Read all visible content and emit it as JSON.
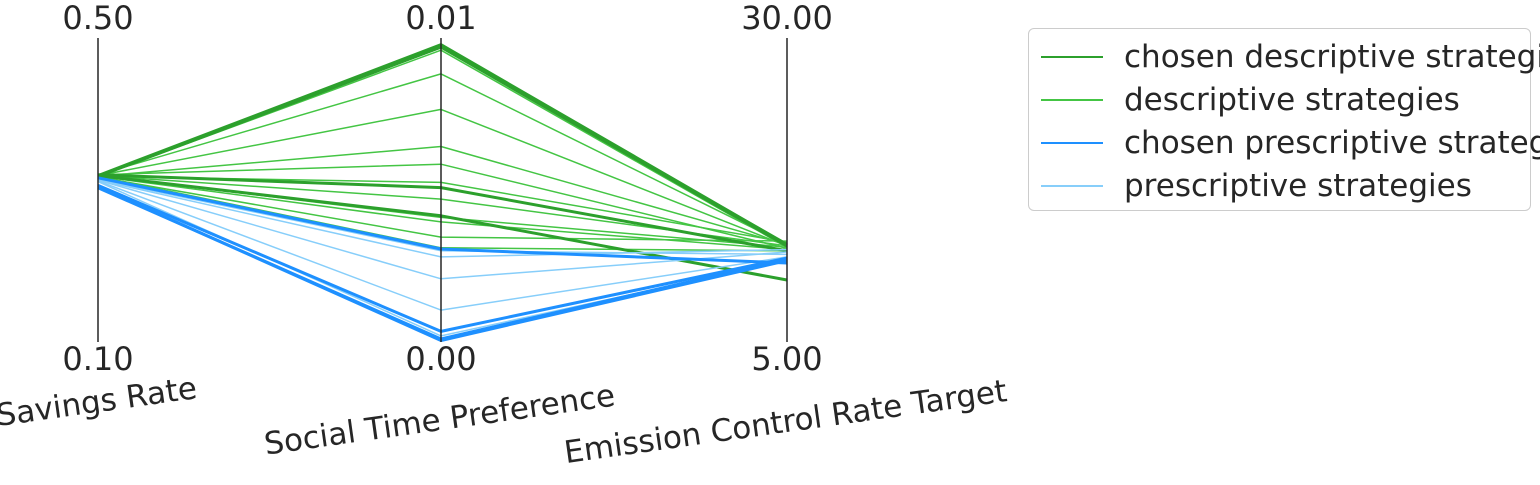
{
  "chart_data": {
    "type": "parallel_coordinates",
    "axes": [
      {
        "label": "Savings Rate",
        "top": "0.50",
        "bottom": "0.10",
        "range": [
          0.1,
          0.5
        ]
      },
      {
        "label": "Social Time Preference",
        "top": "0.01",
        "bottom": "0.00",
        "range": [
          0.0,
          0.01
        ]
      },
      {
        "label": "Emission Control Rate Target",
        "top": "30.00",
        "bottom": "5.00",
        "range": [
          5.0,
          30.0
        ]
      }
    ],
    "legend": {
      "placement": "right",
      "entries": [
        {
          "name": "chosen descriptive strategies",
          "color": "#2ca02c"
        },
        {
          "name": "descriptive strategies",
          "color": "#44c544"
        },
        {
          "name": "chosen prescriptive strategies",
          "color": "#1e90ff"
        },
        {
          "name": "prescriptive strategies",
          "color": "#87cefa"
        }
      ]
    },
    "series": [
      {
        "name": "descriptive strategies",
        "color": "#44c544",
        "width": 1.5,
        "lines": [
          [
            0.319,
            0.00968,
            13.1
          ],
          [
            0.318,
            0.0096,
            12.8
          ],
          [
            0.32,
            0.00882,
            13.0
          ],
          [
            0.319,
            0.00765,
            12.9
          ],
          [
            0.318,
            0.00643,
            13.0
          ],
          [
            0.32,
            0.00585,
            12.7
          ],
          [
            0.318,
            0.00525,
            13.2
          ],
          [
            0.319,
            0.0047,
            12.9
          ],
          [
            0.318,
            0.00395,
            12.6
          ],
          [
            0.317,
            0.00345,
            13.3
          ],
          [
            0.319,
            0.0041,
            12.8
          ],
          [
            0.318,
            0.0031,
            12.5
          ]
        ]
      },
      {
        "name": "chosen descriptive strategies",
        "color": "#2ca02c",
        "width": 3,
        "lines": [
          [
            0.319,
            0.00978,
            13.0
          ],
          [
            0.318,
            0.0097,
            12.9
          ],
          [
            0.32,
            0.00508,
            12.5
          ],
          [
            0.319,
            0.00415,
            10.1
          ]
        ]
      },
      {
        "name": "prescriptive strategies",
        "color": "#87cefa",
        "width": 1.5,
        "lines": [
          [
            0.313,
            0.00208,
            12.4
          ],
          [
            0.312,
            0.00105,
            12.0
          ],
          [
            0.314,
            0.003,
            12.2
          ],
          [
            0.311,
            0.0002,
            11.7
          ],
          [
            0.313,
            0.0028,
            12.6
          ]
        ]
      },
      {
        "name": "chosen prescriptive strategies",
        "color": "#1e90ff",
        "width": 3,
        "lines": [
          [
            0.316,
            0.00306,
            11.5
          ],
          [
            0.303,
            0.0001,
            11.8
          ],
          [
            0.304,
            5e-05,
            11.7
          ],
          [
            0.306,
            0.00035,
            11.9
          ]
        ]
      }
    ]
  }
}
